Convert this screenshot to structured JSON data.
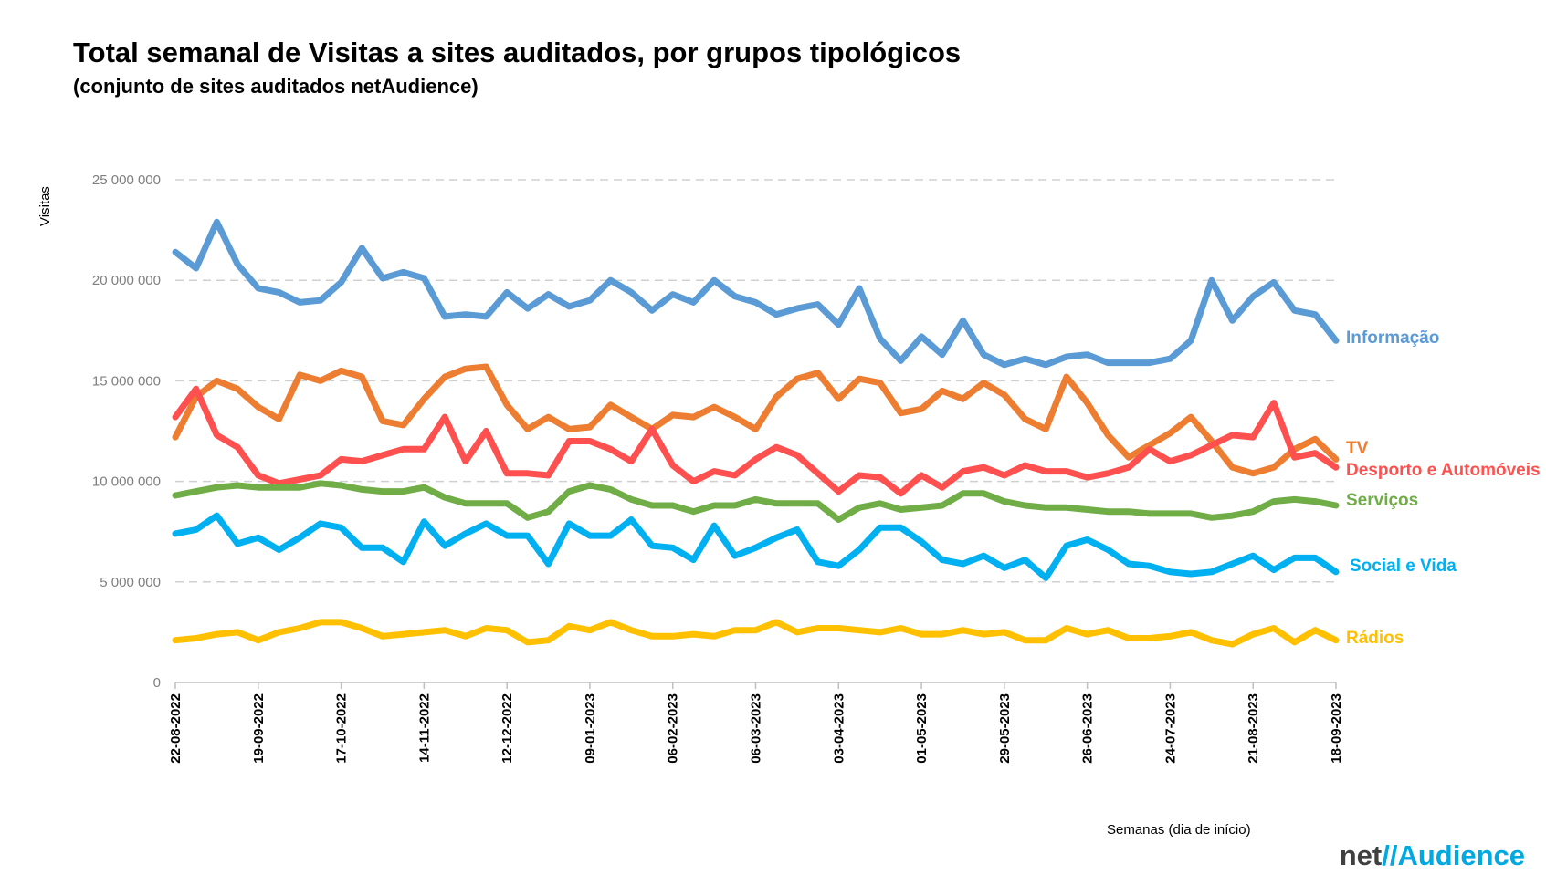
{
  "chart_data": {
    "type": "line",
    "title": "Total semanal de Visitas a sites auditados, por grupos tipológicos",
    "subtitle": "(conjunto de sites auditados netAudience)",
    "xlabel": "Semanas  (dia de início)",
    "ylabel": "Visitas",
    "ylim": [
      0,
      25000000
    ],
    "ytick_values": [
      0,
      5000000,
      10000000,
      15000000,
      20000000,
      25000000
    ],
    "ytick_labels": [
      "0",
      "5 000 000",
      "10 000 000",
      "15 000 000",
      "20 000 000",
      "25 000 000"
    ],
    "grid": "horizontal-dashed",
    "legend": "inline-right",
    "n_weeks": 57,
    "xtick_indices": [
      0,
      4,
      8,
      12,
      16,
      20,
      24,
      28,
      32,
      36,
      40,
      44,
      48,
      52,
      56
    ],
    "xtick_labels": [
      "22-08-2022",
      "19-09-2022",
      "17-10-2022",
      "14-11-2022",
      "12-12-2022",
      "09-01-2023",
      "06-02-2023",
      "06-03-2023",
      "03-04-2023",
      "01-05-2023",
      "29-05-2023",
      "26-06-2023",
      "24-07-2023",
      "21-08-2023",
      "18-09-2023"
    ],
    "series": [
      {
        "name": "Informação",
        "color": "#5b9bd5",
        "values": [
          21400000,
          20600000,
          22900000,
          20800000,
          19600000,
          19400000,
          18900000,
          19000000,
          19900000,
          21600000,
          20100000,
          20400000,
          20100000,
          18200000,
          18300000,
          18200000,
          19400000,
          18600000,
          19300000,
          18700000,
          19000000,
          20000000,
          19400000,
          18500000,
          19300000,
          18900000,
          20000000,
          19200000,
          18900000,
          18300000,
          18600000,
          18800000,
          17800000,
          19600000,
          17100000,
          16000000,
          17200000,
          16300000,
          18000000,
          16300000,
          15800000,
          16100000,
          15800000,
          16200000,
          16300000,
          15900000,
          15900000,
          15900000,
          16100000,
          17000000,
          20000000,
          18000000,
          19200000,
          19900000,
          18500000,
          18300000,
          17000000
        ]
      },
      {
        "name": "TV",
        "color": "#ed7d31",
        "values": [
          12200000,
          14200000,
          15000000,
          14600000,
          13700000,
          13100000,
          15300000,
          15000000,
          15500000,
          15200000,
          13000000,
          12800000,
          14100000,
          15200000,
          15600000,
          15700000,
          13800000,
          12600000,
          13200000,
          12600000,
          12700000,
          13800000,
          13200000,
          12600000,
          13300000,
          13200000,
          13700000,
          13200000,
          12600000,
          14200000,
          15100000,
          15400000,
          14100000,
          15100000,
          14900000,
          13400000,
          13600000,
          14500000,
          14100000,
          14900000,
          14300000,
          13100000,
          12600000,
          15200000,
          13900000,
          12300000,
          11200000,
          11800000,
          12400000,
          13200000,
          12000000,
          10700000,
          10400000,
          10700000,
          11600000,
          12100000,
          11100000
        ]
      },
      {
        "name": "Desporto e Automóveis",
        "color": "#ff5050",
        "values": [
          13200000,
          14600000,
          12300000,
          11700000,
          10300000,
          9900000,
          10100000,
          10300000,
          11100000,
          11000000,
          11300000,
          11600000,
          11600000,
          13200000,
          11000000,
          12500000,
          10400000,
          10400000,
          10300000,
          12000000,
          12000000,
          11600000,
          11000000,
          12600000,
          10800000,
          10000000,
          10500000,
          10300000,
          11100000,
          11700000,
          11300000,
          10400000,
          9500000,
          10300000,
          10200000,
          9400000,
          10300000,
          9700000,
          10500000,
          10700000,
          10300000,
          10800000,
          10500000,
          10500000,
          10200000,
          10400000,
          10700000,
          11600000,
          11000000,
          11300000,
          11800000,
          12300000,
          12200000,
          13900000,
          11200000,
          11400000,
          10700000
        ]
      },
      {
        "name": "Serviços",
        "color": "#70ad47",
        "values": [
          9300000,
          9500000,
          9700000,
          9800000,
          9700000,
          9700000,
          9700000,
          9900000,
          9800000,
          9600000,
          9500000,
          9500000,
          9700000,
          9200000,
          8900000,
          8900000,
          8900000,
          8200000,
          8500000,
          9500000,
          9800000,
          9600000,
          9100000,
          8800000,
          8800000,
          8500000,
          8800000,
          8800000,
          9100000,
          8900000,
          8900000,
          8900000,
          8100000,
          8700000,
          8900000,
          8600000,
          8700000,
          8800000,
          9400000,
          9400000,
          9000000,
          8800000,
          8700000,
          8700000,
          8600000,
          8500000,
          8500000,
          8400000,
          8400000,
          8400000,
          8200000,
          8300000,
          8500000,
          9000000,
          9100000,
          9000000,
          8800000
        ]
      },
      {
        "name": "Social e Vida",
        "color": "#00b0f0",
        "values": [
          7400000,
          7600000,
          8300000,
          6900000,
          7200000,
          6600000,
          7200000,
          7900000,
          7700000,
          6700000,
          6700000,
          6000000,
          8000000,
          6800000,
          7400000,
          7900000,
          7300000,
          7300000,
          5900000,
          7900000,
          7300000,
          7300000,
          8100000,
          6800000,
          6700000,
          6100000,
          7800000,
          6300000,
          6700000,
          7200000,
          7600000,
          6000000,
          5800000,
          6600000,
          7700000,
          7700000,
          7000000,
          6100000,
          5900000,
          6300000,
          5700000,
          6100000,
          5200000,
          6800000,
          7100000,
          6600000,
          5900000,
          5800000,
          5500000,
          5400000,
          5500000,
          5900000,
          6300000,
          5600000,
          6200000,
          6200000,
          5500000
        ]
      },
      {
        "name": "Rádios",
        "color": "#ffc000",
        "values": [
          2100000,
          2200000,
          2400000,
          2500000,
          2100000,
          2500000,
          2700000,
          3000000,
          3000000,
          2700000,
          2300000,
          2400000,
          2500000,
          2600000,
          2300000,
          2700000,
          2600000,
          2000000,
          2100000,
          2800000,
          2600000,
          3000000,
          2600000,
          2300000,
          2300000,
          2400000,
          2300000,
          2600000,
          2600000,
          3000000,
          2500000,
          2700000,
          2700000,
          2600000,
          2500000,
          2700000,
          2400000,
          2400000,
          2600000,
          2400000,
          2500000,
          2100000,
          2100000,
          2700000,
          2400000,
          2600000,
          2200000,
          2200000,
          2300000,
          2500000,
          2100000,
          1900000,
          2400000,
          2700000,
          2000000,
          2600000,
          2100000
        ]
      }
    ]
  },
  "logo": {
    "net": "net",
    "slashes": "//",
    "audience": "Audience"
  }
}
